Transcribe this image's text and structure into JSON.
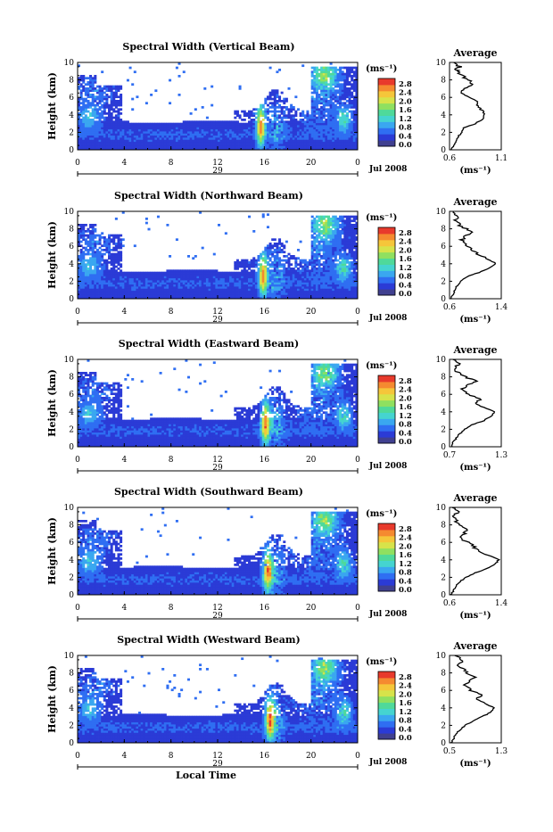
{
  "chart_data": [
    {
      "type": "heatmap",
      "title": "Spectral Width (Vertical Beam)",
      "ylabel": "Height (km)",
      "ylim": [
        0,
        10
      ],
      "yticks": [
        "0",
        "2",
        "4",
        "6",
        "8",
        "10"
      ],
      "xticks": [
        "0",
        "4",
        "8",
        "12",
        "16",
        "20",
        "0"
      ],
      "date_day": "29",
      "date_month_year": "Jul 2008",
      "colorbar": {
        "unit": "(ms⁻¹)",
        "ticks": [
          "0.0",
          "0.4",
          "0.8",
          "1.2",
          "1.6",
          "2.0",
          "2.4",
          "2.8"
        ]
      },
      "average": {
        "title": "Average",
        "xlim": [
          0.6,
          1.1
        ],
        "xticks": [
          "0.6",
          "1.1"
        ],
        "xlabel": "(ms⁻¹)",
        "profile": [
          [
            0.0,
            0.62
          ],
          [
            0.5,
            0.64
          ],
          [
            1.0,
            0.66
          ],
          [
            1.5,
            0.68
          ],
          [
            2.0,
            0.72
          ],
          [
            2.5,
            0.74
          ],
          [
            3.0,
            0.85
          ],
          [
            3.5,
            0.92
          ],
          [
            4.0,
            0.94
          ],
          [
            4.5,
            0.92
          ],
          [
            5.0,
            0.88
          ],
          [
            5.5,
            0.86
          ],
          [
            6.0,
            0.8
          ],
          [
            6.5,
            0.72
          ],
          [
            7.0,
            0.74
          ],
          [
            7.5,
            0.82
          ],
          [
            8.0,
            0.78
          ],
          [
            8.5,
            0.72
          ],
          [
            9.0,
            0.68
          ],
          [
            9.3,
            0.66
          ],
          [
            9.5,
            0.7
          ],
          [
            10.0,
            0.64
          ]
        ]
      }
    },
    {
      "type": "heatmap",
      "title": "Spectral Width (Northward Beam)",
      "ylabel": "Height (km)",
      "ylim": [
        0,
        10
      ],
      "yticks": [
        "0",
        "2",
        "4",
        "6",
        "8",
        "10"
      ],
      "xticks": [
        "0",
        "4",
        "8",
        "12",
        "16",
        "20",
        "0"
      ],
      "date_day": "29",
      "date_month_year": "Jul 2008",
      "colorbar": {
        "unit": "(ms⁻¹)",
        "ticks": [
          "0.0",
          "0.4",
          "0.8",
          "1.2",
          "1.6",
          "2.0",
          "2.4",
          "2.8"
        ]
      },
      "average": {
        "title": "Average",
        "xlim": [
          0.6,
          1.4
        ],
        "xticks": [
          "0.6",
          "1.4"
        ],
        "xlabel": "(ms⁻¹)",
        "profile": [
          [
            0.0,
            0.62
          ],
          [
            0.5,
            0.66
          ],
          [
            1.0,
            0.68
          ],
          [
            1.5,
            0.72
          ],
          [
            2.0,
            0.78
          ],
          [
            2.5,
            0.86
          ],
          [
            3.0,
            1.05
          ],
          [
            3.5,
            1.2
          ],
          [
            4.0,
            1.32
          ],
          [
            4.5,
            1.2
          ],
          [
            5.0,
            1.05
          ],
          [
            5.5,
            0.98
          ],
          [
            6.0,
            0.9
          ],
          [
            6.5,
            0.78
          ],
          [
            7.0,
            0.82
          ],
          [
            7.5,
            0.94
          ],
          [
            8.0,
            0.85
          ],
          [
            8.5,
            0.74
          ],
          [
            9.0,
            0.7
          ],
          [
            9.5,
            0.72
          ],
          [
            10.0,
            0.66
          ]
        ]
      }
    },
    {
      "type": "heatmap",
      "title": "Spectral Width (Eastward Beam)",
      "ylabel": "Height (km)",
      "ylim": [
        0,
        10
      ],
      "yticks": [
        "0",
        "2",
        "4",
        "6",
        "8",
        "10"
      ],
      "xticks": [
        "0",
        "4",
        "8",
        "12",
        "16",
        "20",
        "0"
      ],
      "date_day": "29",
      "date_month_year": "Jul 2008",
      "colorbar": {
        "unit": "(ms⁻¹)",
        "ticks": [
          "0.0",
          "0.4",
          "0.8",
          "1.2",
          "1.6",
          "2.0",
          "2.4",
          "2.8"
        ]
      },
      "average": {
        "title": "Average",
        "xlim": [
          0.7,
          1.3
        ],
        "xticks": [
          "0.7",
          "1.3"
        ],
        "xlabel": "(ms⁻¹)",
        "profile": [
          [
            0.0,
            0.72
          ],
          [
            0.5,
            0.74
          ],
          [
            1.0,
            0.78
          ],
          [
            1.5,
            0.82
          ],
          [
            2.0,
            0.88
          ],
          [
            2.5,
            0.95
          ],
          [
            3.0,
            1.1
          ],
          [
            3.5,
            1.18
          ],
          [
            4.0,
            1.22
          ],
          [
            4.5,
            1.1
          ],
          [
            5.0,
            1.0
          ],
          [
            5.5,
            1.06
          ],
          [
            6.0,
            0.92
          ],
          [
            6.5,
            0.84
          ],
          [
            7.0,
            0.9
          ],
          [
            7.5,
            1.0
          ],
          [
            8.0,
            0.88
          ],
          [
            8.5,
            0.8
          ],
          [
            9.0,
            0.76
          ],
          [
            9.5,
            0.8
          ],
          [
            10.0,
            0.74
          ]
        ]
      }
    },
    {
      "type": "heatmap",
      "title": "Spectral Width (Southward Beam)",
      "ylabel": "Height (km)",
      "ylim": [
        0,
        10
      ],
      "yticks": [
        "0",
        "2",
        "4",
        "6",
        "8",
        "10"
      ],
      "xticks": [
        "0",
        "4",
        "8",
        "12",
        "16",
        "20",
        "0"
      ],
      "date_day": "29",
      "date_month_year": "Jul 2008",
      "colorbar": {
        "unit": "(ms⁻¹)",
        "ticks": [
          "0.0",
          "0.4",
          "0.8",
          "1.2",
          "1.6",
          "2.0",
          "2.4",
          "2.8"
        ]
      },
      "average": {
        "title": "Average",
        "xlim": [
          0.6,
          1.4
        ],
        "xticks": [
          "0.6",
          "1.4"
        ],
        "xlabel": "(ms⁻¹)",
        "profile": [
          [
            0.0,
            0.62
          ],
          [
            0.5,
            0.66
          ],
          [
            1.0,
            0.7
          ],
          [
            1.5,
            0.76
          ],
          [
            2.0,
            0.86
          ],
          [
            2.5,
            1.0
          ],
          [
            3.0,
            1.18
          ],
          [
            3.5,
            1.3
          ],
          [
            4.0,
            1.36
          ],
          [
            4.5,
            1.22
          ],
          [
            5.0,
            1.05
          ],
          [
            5.5,
            0.98
          ],
          [
            6.0,
            0.88
          ],
          [
            6.5,
            0.78
          ],
          [
            7.0,
            0.82
          ],
          [
            7.5,
            0.88
          ],
          [
            8.0,
            0.76
          ],
          [
            8.5,
            0.7
          ],
          [
            9.0,
            0.68
          ],
          [
            9.5,
            0.72
          ],
          [
            10.0,
            0.64
          ]
        ]
      }
    },
    {
      "type": "heatmap",
      "title": "Spectral Width (Westward Beam)",
      "ylabel": "Height (km)",
      "ylim": [
        0,
        10
      ],
      "yticks": [
        "0",
        "2",
        "4",
        "6",
        "8",
        "10"
      ],
      "xticks": [
        "0",
        "4",
        "8",
        "12",
        "16",
        "20",
        "0"
      ],
      "date_day": "29",
      "date_month_year": "Jul 2008",
      "xlabel": "Local Time",
      "colorbar": {
        "unit": "(ms⁻¹)",
        "ticks": [
          "0.0",
          "0.4",
          "0.8",
          "1.2",
          "1.6",
          "2.0",
          "2.4",
          "2.8"
        ]
      },
      "average": {
        "title": "Average",
        "xlim": [
          0.5,
          1.3
        ],
        "xticks": [
          "0.5",
          "1.3"
        ],
        "xlabel": "(ms⁻¹)",
        "profile": [
          [
            0.0,
            0.52
          ],
          [
            0.5,
            0.56
          ],
          [
            1.0,
            0.6
          ],
          [
            1.5,
            0.66
          ],
          [
            2.0,
            0.74
          ],
          [
            2.5,
            0.86
          ],
          [
            3.0,
            1.0
          ],
          [
            3.5,
            1.14
          ],
          [
            4.0,
            1.2
          ],
          [
            4.5,
            1.05
          ],
          [
            5.0,
            0.92
          ],
          [
            5.5,
            1.0
          ],
          [
            6.0,
            0.84
          ],
          [
            6.5,
            0.74
          ],
          [
            7.0,
            0.8
          ],
          [
            7.5,
            0.88
          ],
          [
            8.0,
            0.78
          ],
          [
            8.5,
            0.7
          ],
          [
            9.0,
            0.64
          ],
          [
            9.5,
            0.7
          ],
          [
            10.0,
            0.58
          ]
        ]
      }
    }
  ],
  "colors": {
    "colormap": [
      "#404090",
      "#2b3bd6",
      "#2f6ef2",
      "#3aa7f0",
      "#45d4d0",
      "#4fd99a",
      "#8fe060",
      "#d7e34a",
      "#f5c63a",
      "#f58a30",
      "#e83a2c"
    ]
  }
}
